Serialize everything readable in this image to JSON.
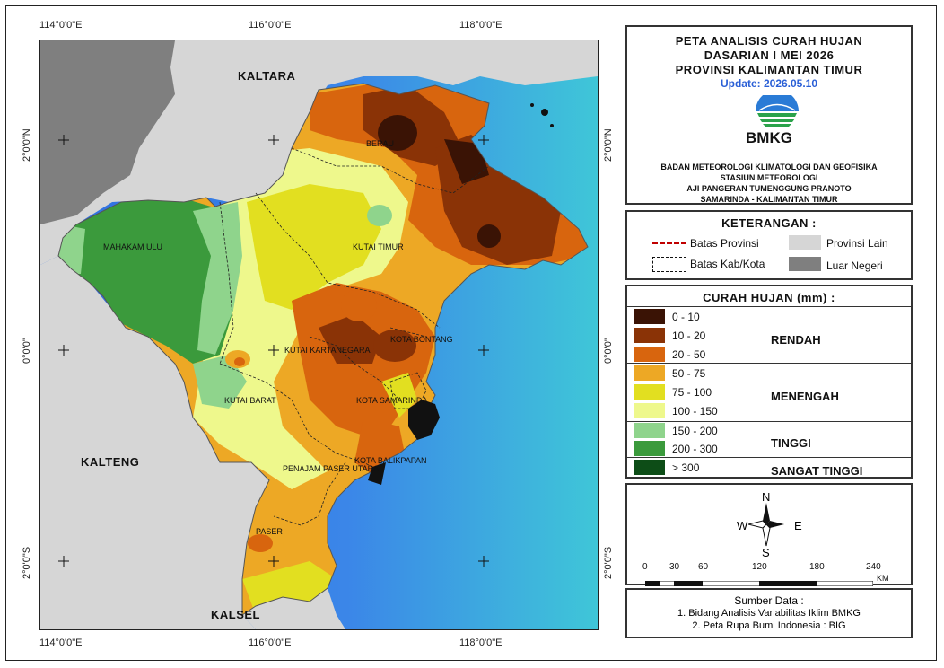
{
  "map": {
    "lon_labels": [
      "114°0'0\"E",
      "116°0'0\"E",
      "118°0'0\"E"
    ],
    "lat_labels": [
      "2°0'0\"N",
      "0°0'0\"",
      "2°0'0\"S"
    ],
    "region_labels": {
      "kaltara": "KALTARA",
      "kalteng": "KALTENG",
      "kalsel": "KALSEL"
    },
    "district_labels": {
      "berau": "BERAU",
      "mahakam_ulu": "MAHAKAM ULU",
      "kutai_timur": "KUTAI TIMUR",
      "kutai_kartanegara": "KUTAI KARTANEGARA",
      "kota_bontang": "KOTA BONTANG",
      "kutai_barat": "KUTAI BARAT",
      "kota_samarinda": "KOTA SAMARINDA",
      "kota_balikpapan": "KOTA BALIKPAPAN",
      "penajam": "PENAJAM PASER UTARA",
      "paser": "PASER"
    }
  },
  "title": {
    "line1": "PETA ANALISIS CURAH HUJAN",
    "line2": "DASARIAN I MEI 2026",
    "line3": "PROVINSI KALIMANTAN TIMUR",
    "update": "Update: 2026.05.10",
    "logo_text": "BMKG",
    "org1": "BADAN METEOROLOGI KLIMATOLOGI DAN GEOFISIKA",
    "org2": "STASIUN METEOROLOGI",
    "org3": "AJI PANGERAN TUMENGGUNG PRANOTO",
    "org4": "SAMARINDA - KALIMANTAN TIMUR"
  },
  "keterangan": {
    "heading": "KETERANGAN :",
    "batas_provinsi": "Batas Provinsi",
    "batas_kab": "Batas Kab/Kota",
    "provinsi_lain": "Provinsi Lain",
    "luar_negeri": "Luar Negeri",
    "colors": {
      "provinsi_lain": "#d6d6d6",
      "luar_negeri": "#7f7f7f",
      "batas_provinsi": "#c00000"
    }
  },
  "curah_hujan": {
    "heading": "CURAH HUJAN (mm) :",
    "classes": [
      {
        "label": "0 - 10",
        "color": "#3a1305"
      },
      {
        "label": "10 - 20",
        "color": "#8a3306"
      },
      {
        "label": "20 - 50",
        "color": "#d8650e"
      },
      {
        "label": "50 - 75",
        "color": "#eda825"
      },
      {
        "label": "75 - 100",
        "color": "#e2df20"
      },
      {
        "label": "100 - 150",
        "color": "#eef88c"
      },
      {
        "label": "150 - 200",
        "color": "#8fd48c"
      },
      {
        "label": "200 - 300",
        "color": "#3b9a3c"
      },
      {
        "label": "> 300",
        "color": "#0d4d17"
      }
    ],
    "categories": {
      "rendah": "RENDAH",
      "menengah": "MENENGAH",
      "tinggi": "TINGGI",
      "sangat_tinggi": "SANGAT TINGGI"
    }
  },
  "compass": {
    "n": "N",
    "s": "S",
    "e": "E",
    "w": "W"
  },
  "scale": {
    "ticks": [
      "0",
      "30",
      "60",
      "120",
      "180",
      "240"
    ],
    "unit": "KM"
  },
  "source": {
    "heading": "Sumber Data :",
    "line1": "1. Bidang Analisis Variabilitas Iklim BMKG",
    "line2": "2. Peta Rupa Bumi Indonesia : BIG"
  }
}
